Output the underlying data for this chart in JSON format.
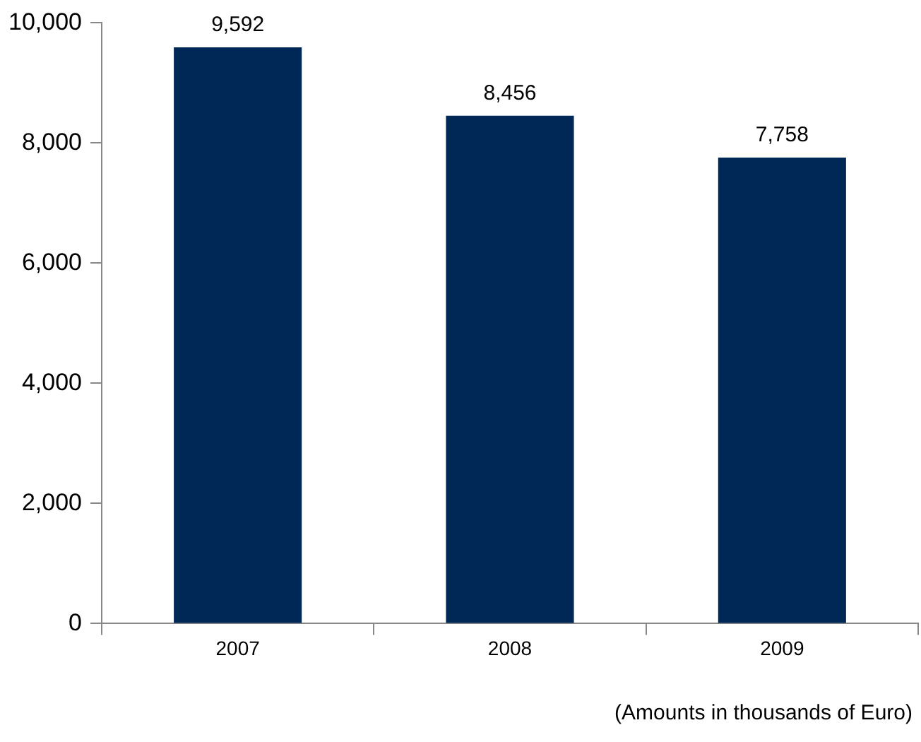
{
  "chart_data": {
    "type": "bar",
    "categories": [
      "2007",
      "2008",
      "2009"
    ],
    "values": [
      9592,
      8456,
      7758
    ],
    "value_labels": [
      "9,592",
      "8,456",
      "7,758"
    ],
    "color": "#002856",
    "ylim": [
      0,
      10000
    ],
    "yticks": [
      0,
      {
        "value": 2000,
        "label": "2,000"
      },
      {
        "value": 4000,
        "label": "4,000"
      },
      {
        "value": 6000,
        "label": "6,000"
      },
      {
        "value": 8000,
        "label": "8,000"
      },
      {
        "value": 10000,
        "label": "10,000"
      }
    ],
    "annotations": [
      "(Amounts in thousands of Euro)"
    ]
  }
}
